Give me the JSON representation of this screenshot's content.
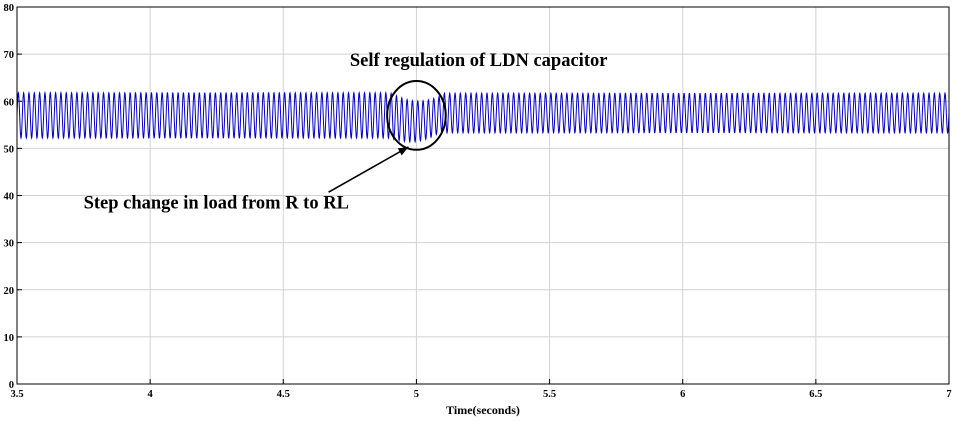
{
  "chart_data": {
    "type": "line",
    "title": "",
    "xlabel": "Time(seconds)",
    "ylabel": "",
    "xlim": [
      3.5,
      7
    ],
    "ylim": [
      0,
      80
    ],
    "grid": true,
    "x_ticks": [
      "3.5",
      "4",
      "4.5",
      "5",
      "5.5",
      "6",
      "6.5",
      "7"
    ],
    "y_ticks": [
      "0",
      "10",
      "20",
      "30",
      "40",
      "50",
      "60",
      "70",
      "80"
    ],
    "series": [
      {
        "color": "#0000cc",
        "segments": [
          {
            "x_start": 3.5,
            "x_end": 4.9,
            "y_mean": 57,
            "y_amplitude": 4.8,
            "cycles_per_second": 50
          },
          {
            "x_start": 4.9,
            "x_end": 5.1,
            "y_mean_start": 57,
            "y_mean_end": 57.5,
            "y_amplitude_start": 4.8,
            "y_amplitude_end": 3.8,
            "y_mean_dip": 1.5,
            "cycles_per_second": 50
          },
          {
            "x_start": 5.1,
            "x_end": 7.0,
            "y_mean": 57.5,
            "y_amplitude": 4.2,
            "cycles_per_second": 50
          }
        ]
      }
    ],
    "annotations": [
      {
        "text": "Self regulation of LDN capacitor",
        "x": 4.75,
        "y": 67.5
      },
      {
        "text": "Step change in load from R to RL",
        "x": 3.75,
        "y": 37.2
      }
    ],
    "highlight_ellipse": {
      "x_center": 5.0,
      "y_center": 57,
      "x_radius": 0.11,
      "y_radius": 7.3
    },
    "arrow": {
      "from": [
        4.67,
        40.7
      ],
      "to": [
        4.97,
        50.3
      ]
    }
  }
}
